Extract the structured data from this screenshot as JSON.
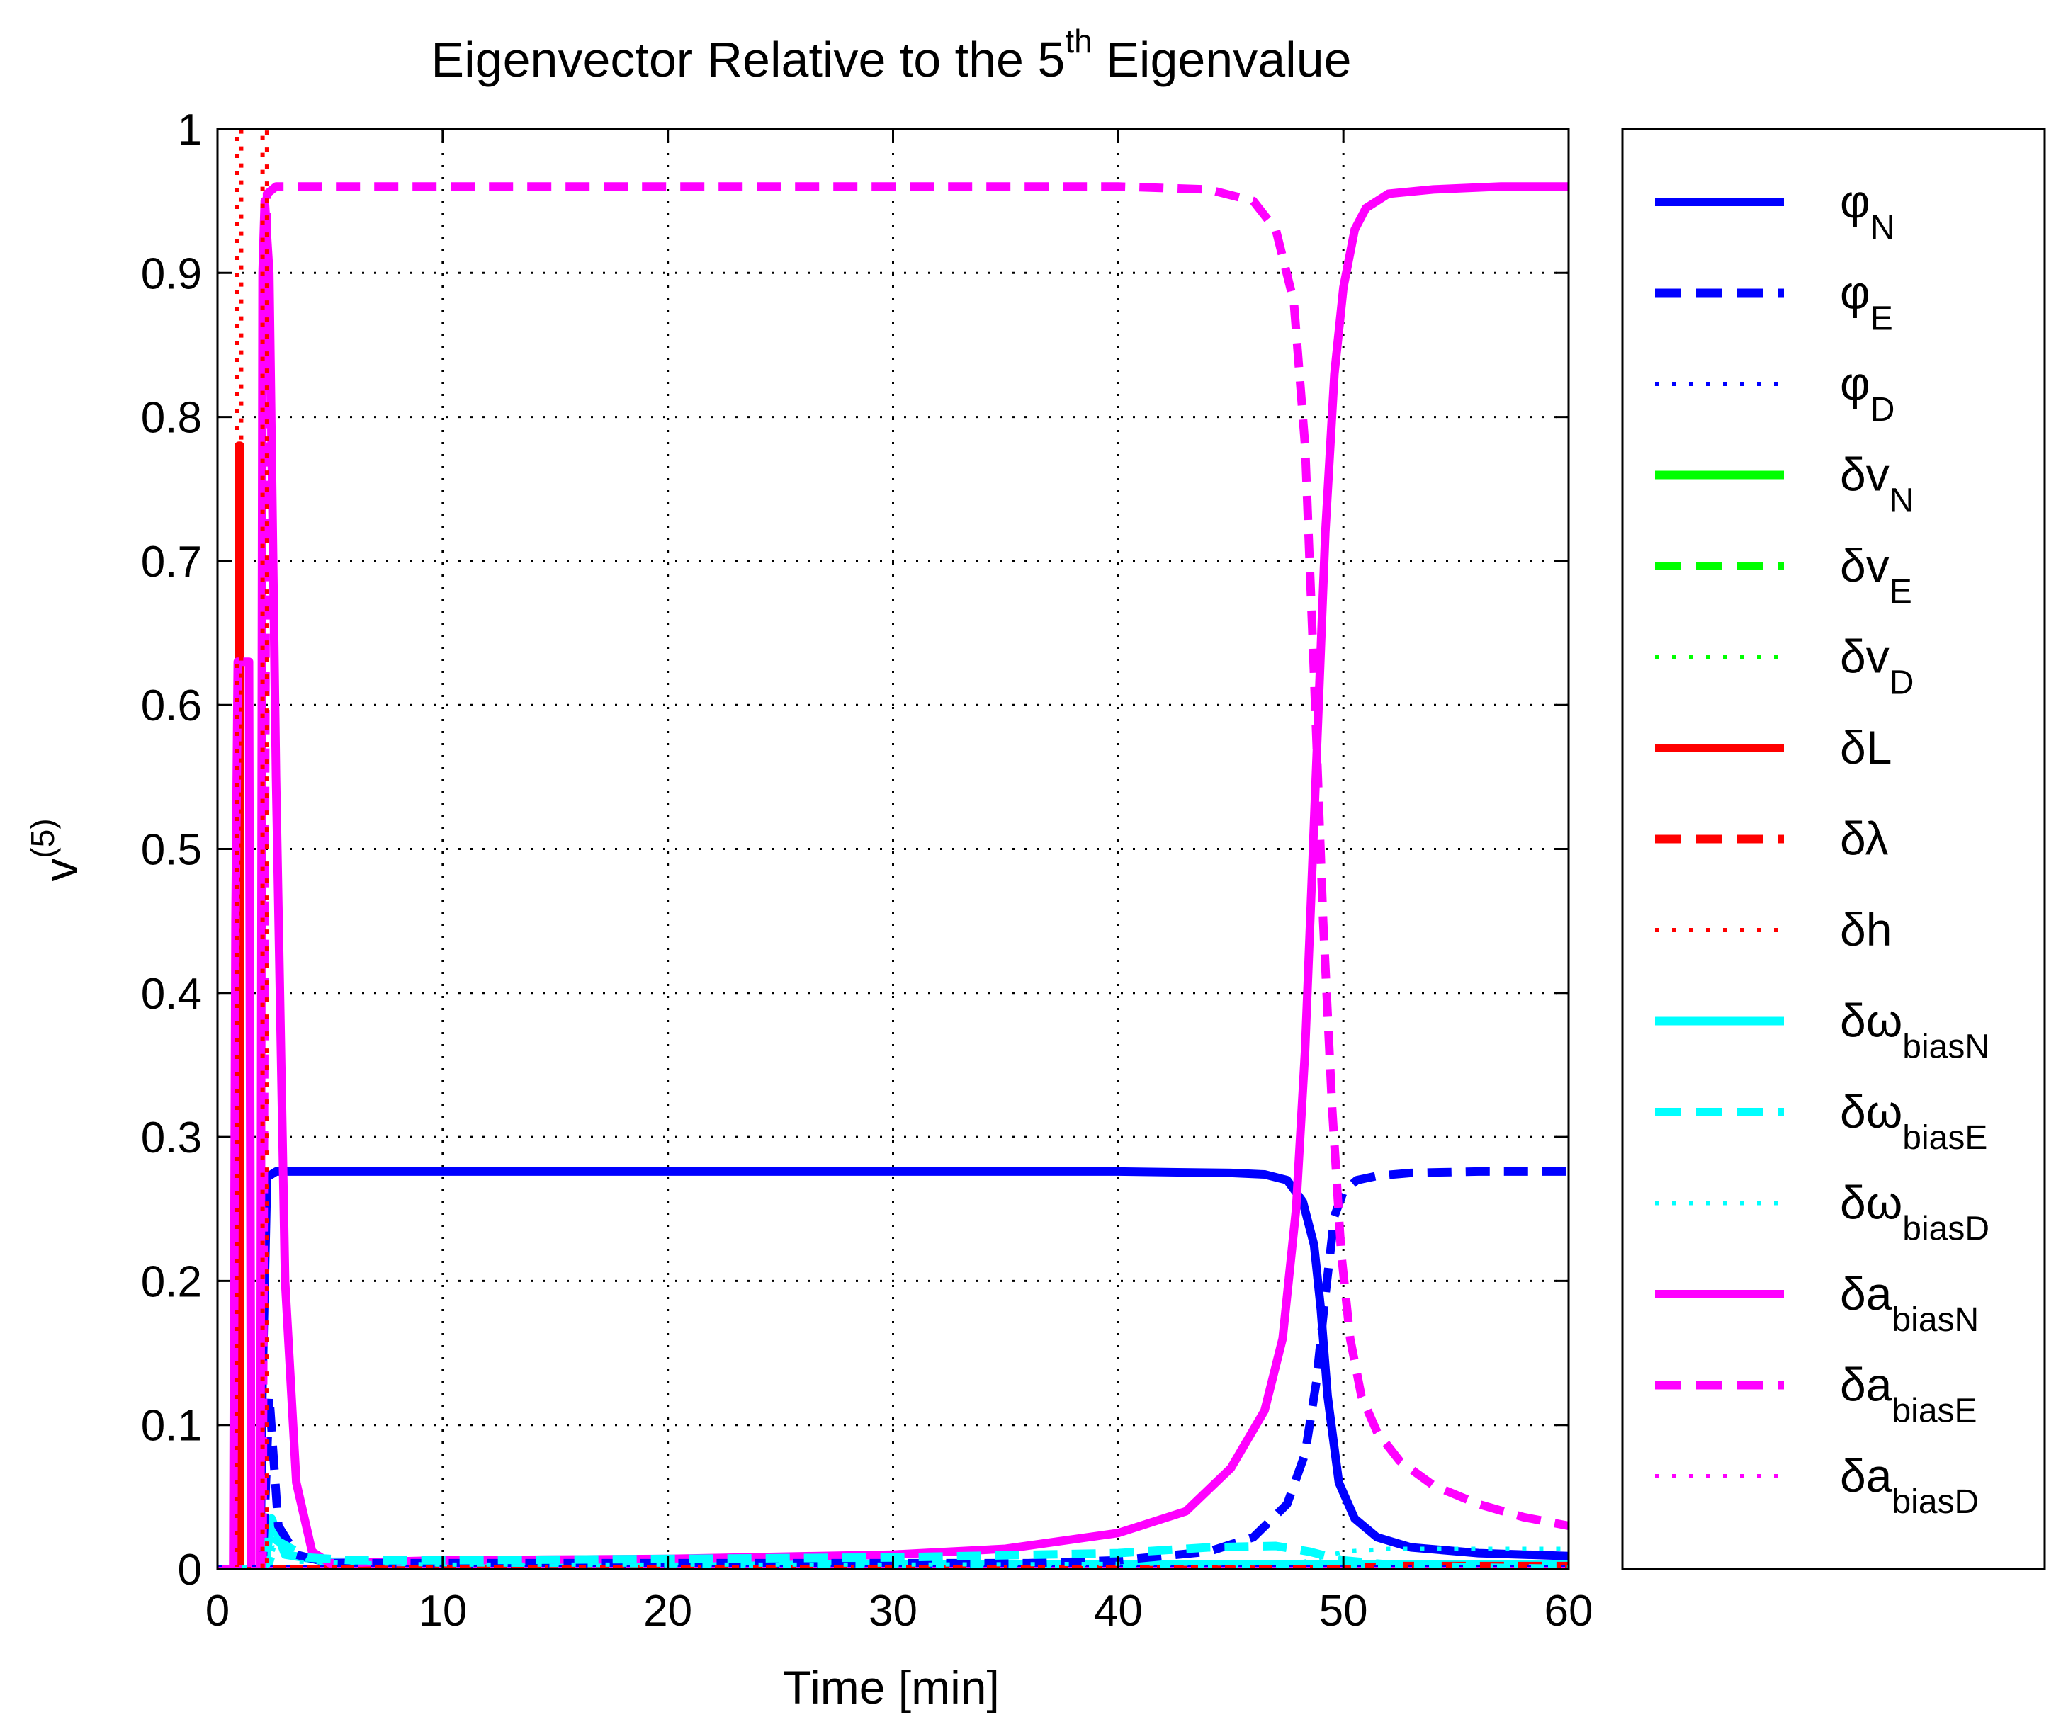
{
  "chart_data": {
    "type": "line",
    "title": {
      "main": "Eigenvector Relative to the 5",
      "superscript": "th",
      "suffix": " Eigenvalue"
    },
    "xlabel": "Time [min]",
    "ylabel": {
      "base": "v",
      "superscript": "(5)"
    },
    "xlim": [
      0,
      60
    ],
    "ylim": [
      0,
      1
    ],
    "xticks": [
      0,
      10,
      20,
      30,
      40,
      50,
      60
    ],
    "yticks": [
      0,
      0.1,
      0.2,
      0.3,
      0.4,
      0.5,
      0.6,
      0.7,
      0.8,
      0.9,
      1
    ],
    "xtick_labels": [
      "0",
      "10",
      "20",
      "30",
      "40",
      "50",
      "60"
    ],
    "ytick_labels": [
      "0",
      "0.1",
      "0.2",
      "0.3",
      "0.4",
      "0.5",
      "0.6",
      "0.7",
      "0.8",
      "0.9",
      "1"
    ],
    "grid": true,
    "legend_position": "outside-right",
    "series": [
      {
        "name": "φN",
        "label": "φ",
        "sub": "N",
        "color": "#0000ff",
        "style": "solid",
        "x": [
          0,
          1.9,
          2.0,
          2.2,
          2.6,
          5,
          10,
          20,
          30,
          40,
          45,
          46.5,
          47.5,
          48.2,
          48.7,
          49.0,
          49.3,
          49.8,
          50.5,
          51.5,
          53,
          56,
          60
        ],
        "y": [
          0,
          0,
          0.13,
          0.272,
          0.276,
          0.276,
          0.276,
          0.276,
          0.276,
          0.276,
          0.275,
          0.274,
          0.27,
          0.255,
          0.225,
          0.18,
          0.12,
          0.06,
          0.035,
          0.022,
          0.015,
          0.011,
          0.009
        ]
      },
      {
        "name": "φE",
        "label": "φ",
        "sub": "E",
        "color": "#0000ff",
        "style": "dashed",
        "x": [
          0,
          2.0,
          2.3,
          2.7,
          3.5,
          5,
          10,
          20,
          30,
          36,
          40,
          44,
          46,
          47.5,
          48.3,
          48.8,
          49.2,
          49.6,
          50.0,
          50.6,
          51.5,
          53,
          56,
          60
        ],
        "y": [
          0,
          0,
          0.12,
          0.03,
          0.01,
          0.004,
          0.004,
          0.004,
          0.004,
          0.004,
          0.006,
          0.012,
          0.022,
          0.045,
          0.08,
          0.13,
          0.19,
          0.245,
          0.262,
          0.27,
          0.273,
          0.275,
          0.276,
          0.276
        ]
      },
      {
        "name": "φD",
        "label": "φ",
        "sub": "D",
        "color": "#0000ff",
        "style": "dotted",
        "x": [
          0,
          60
        ],
        "y": [
          0.001,
          0.001
        ]
      },
      {
        "name": "δvN",
        "label": "δv",
        "sub": "N",
        "color": "#00ff00",
        "style": "solid",
        "x": [
          0,
          60
        ],
        "y": [
          0,
          0
        ]
      },
      {
        "name": "δvE",
        "label": "δv",
        "sub": "E",
        "color": "#00ff00",
        "style": "dashed",
        "x": [
          0,
          60
        ],
        "y": [
          0,
          0
        ]
      },
      {
        "name": "δvD",
        "label": "δv",
        "sub": "D",
        "color": "#00ff00",
        "style": "dotted",
        "x": [
          0,
          60
        ],
        "y": [
          0,
          0
        ]
      },
      {
        "name": "δL",
        "label": "δL",
        "sub": "",
        "color": "#ff0000",
        "style": "solid",
        "x": [
          0,
          0.95,
          0.95,
          1.0,
          1.0,
          60
        ],
        "y": [
          0,
          0,
          0.78,
          0.78,
          0,
          0
        ]
      },
      {
        "name": "δλ",
        "label": "δλ",
        "sub": "",
        "color": "#ff0000",
        "style": "dashed",
        "x": [
          0,
          50,
          52,
          60
        ],
        "y": [
          0,
          0,
          0.002,
          0.002
        ]
      },
      {
        "name": "δh",
        "label": "δh",
        "sub": "",
        "color": "#ff0000",
        "style": "dotted",
        "x": [
          0.85,
          0.85,
          1.05,
          1.05,
          1.1,
          1.1,
          1.2,
          2.0,
          2.0,
          2.2,
          2.2,
          2.3
        ],
        "y": [
          0,
          1,
          1,
          0,
          0,
          0,
          0,
          0,
          1,
          1,
          0,
          0
        ]
      },
      {
        "name": "δωbiasN",
        "label": "δω",
        "sub": "biasN",
        "color": "#00ffff",
        "style": "solid",
        "x": [
          0,
          2.1,
          2.4,
          3,
          5,
          20,
          40,
          60
        ],
        "y": [
          0,
          0,
          0.035,
          0.01,
          0.005,
          0.004,
          0.003,
          0.003
        ]
      },
      {
        "name": "δωbiasE",
        "label": "δω",
        "sub": "biasE",
        "color": "#00ffff",
        "style": "dashed",
        "x": [
          0,
          2.2,
          2.6,
          4,
          6,
          10,
          20,
          30,
          40,
          44,
          47,
          48.5,
          50,
          52,
          56,
          60
        ],
        "y": [
          0,
          0,
          0.02,
          0.008,
          0.006,
          0.006,
          0.007,
          0.008,
          0.011,
          0.015,
          0.016,
          0.012,
          0.006,
          0.003,
          0.001,
          0
        ]
      },
      {
        "name": "δωbiasD",
        "label": "δω",
        "sub": "biasD",
        "color": "#00ffff",
        "style": "dotted",
        "x": [
          0,
          2.2,
          2.5,
          3.5,
          10,
          30,
          48,
          50,
          52,
          60
        ],
        "y": [
          0,
          0,
          0.015,
          0.005,
          0.003,
          0.003,
          0.004,
          0.012,
          0.014,
          0.014
        ]
      },
      {
        "name": "δabiasN",
        "label": "δa",
        "sub": "biasN",
        "color": "#ff00ff",
        "style": "solid",
        "x": [
          0,
          0.7,
          0.8,
          0.9,
          1.4,
          1.5,
          1.9,
          2.0,
          2.1,
          2.3,
          2.6,
          3.0,
          3.5,
          4.2,
          5,
          10,
          20,
          30,
          35,
          40,
          43,
          45,
          46.5,
          47.3,
          47.9,
          48.3,
          48.6,
          48.9,
          49.2,
          49.6,
          50.0,
          50.5,
          51,
          52,
          54,
          57,
          60
        ],
        "y": [
          0,
          0,
          0.45,
          0.63,
          0.63,
          0,
          0,
          0.9,
          0.95,
          0.9,
          0.55,
          0.2,
          0.06,
          0.012,
          0.004,
          0.006,
          0.007,
          0.01,
          0.014,
          0.025,
          0.04,
          0.07,
          0.11,
          0.16,
          0.25,
          0.36,
          0.48,
          0.6,
          0.72,
          0.83,
          0.89,
          0.93,
          0.945,
          0.955,
          0.958,
          0.96,
          0.96
        ]
      },
      {
        "name": "δabiasE",
        "label": "δa",
        "sub": "biasE",
        "color": "#ff00ff",
        "style": "dashed",
        "x": [
          0,
          2.0,
          2.2,
          2.6,
          5,
          20,
          40,
          44,
          46,
          47,
          47.8,
          48.3,
          48.7,
          49.1,
          49.5,
          49.9,
          50.3,
          50.8,
          51.5,
          52.5,
          54,
          56,
          58,
          60
        ],
        "y": [
          0,
          0,
          0.955,
          0.96,
          0.96,
          0.96,
          0.96,
          0.958,
          0.95,
          0.93,
          0.88,
          0.78,
          0.62,
          0.45,
          0.32,
          0.22,
          0.16,
          0.12,
          0.095,
          0.075,
          0.058,
          0.045,
          0.036,
          0.03
        ]
      },
      {
        "name": "δabiasD",
        "label": "δa",
        "sub": "biasD",
        "color": "#ff00ff",
        "style": "dotted",
        "x": [
          0,
          60
        ],
        "y": [
          0,
          0
        ]
      }
    ]
  }
}
